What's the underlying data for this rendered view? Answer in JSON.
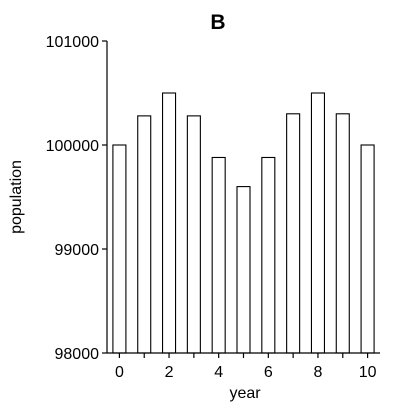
{
  "chart_data": {
    "type": "bar",
    "title": "B",
    "xlabel": "year",
    "ylabel": "population",
    "x": [
      0,
      1,
      2,
      3,
      4,
      5,
      6,
      7,
      8,
      9,
      10
    ],
    "values": [
      100000,
      100280,
      100500,
      100280,
      99880,
      99600,
      99880,
      100300,
      100500,
      100300,
      100000
    ],
    "x_tick_labels": [
      "0",
      "2",
      "4",
      "6",
      "8",
      "10"
    ],
    "y_tick_labels": [
      "98000",
      "99000",
      "100000",
      "101000"
    ],
    "ylim": [
      98000,
      101000
    ],
    "grid": false,
    "legend": "none",
    "colors": {
      "bar_fill": "#ffffff",
      "bar_stroke": "#000000",
      "axis": "#000000",
      "text": "#000000"
    }
  }
}
